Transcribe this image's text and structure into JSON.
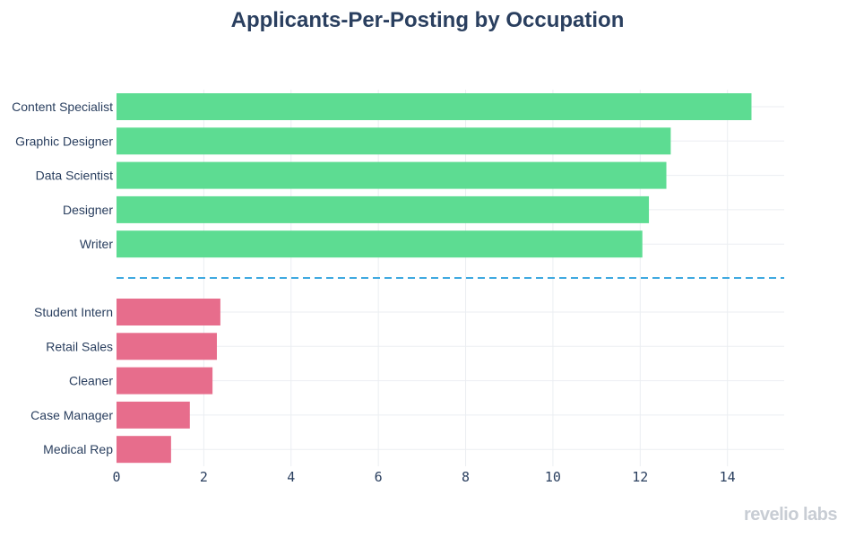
{
  "chart_data": {
    "type": "bar",
    "orientation": "horizontal",
    "title": "Applicants-Per-Posting by Occupation",
    "xlim": [
      0,
      15.3
    ],
    "xticks": [
      0,
      2,
      4,
      6,
      8,
      10,
      12,
      14
    ],
    "grid": true,
    "groups": [
      {
        "color": "#5ddc92",
        "categories": [
          "Content Specialist",
          "Graphic Designer",
          "Data Scientist",
          "Designer",
          "Writer"
        ],
        "values": [
          14.55,
          12.7,
          12.6,
          12.2,
          12.05
        ]
      },
      {
        "color": "#e76d8c",
        "categories": [
          "Student Intern",
          "Retail Sales",
          "Cleaner",
          "Case Manager",
          "Medical Rep"
        ],
        "values": [
          2.38,
          2.3,
          2.2,
          1.68,
          1.25
        ]
      }
    ],
    "separator": {
      "style": "dashed",
      "color": "#3fa9e0"
    }
  },
  "logo": "revelio labs"
}
